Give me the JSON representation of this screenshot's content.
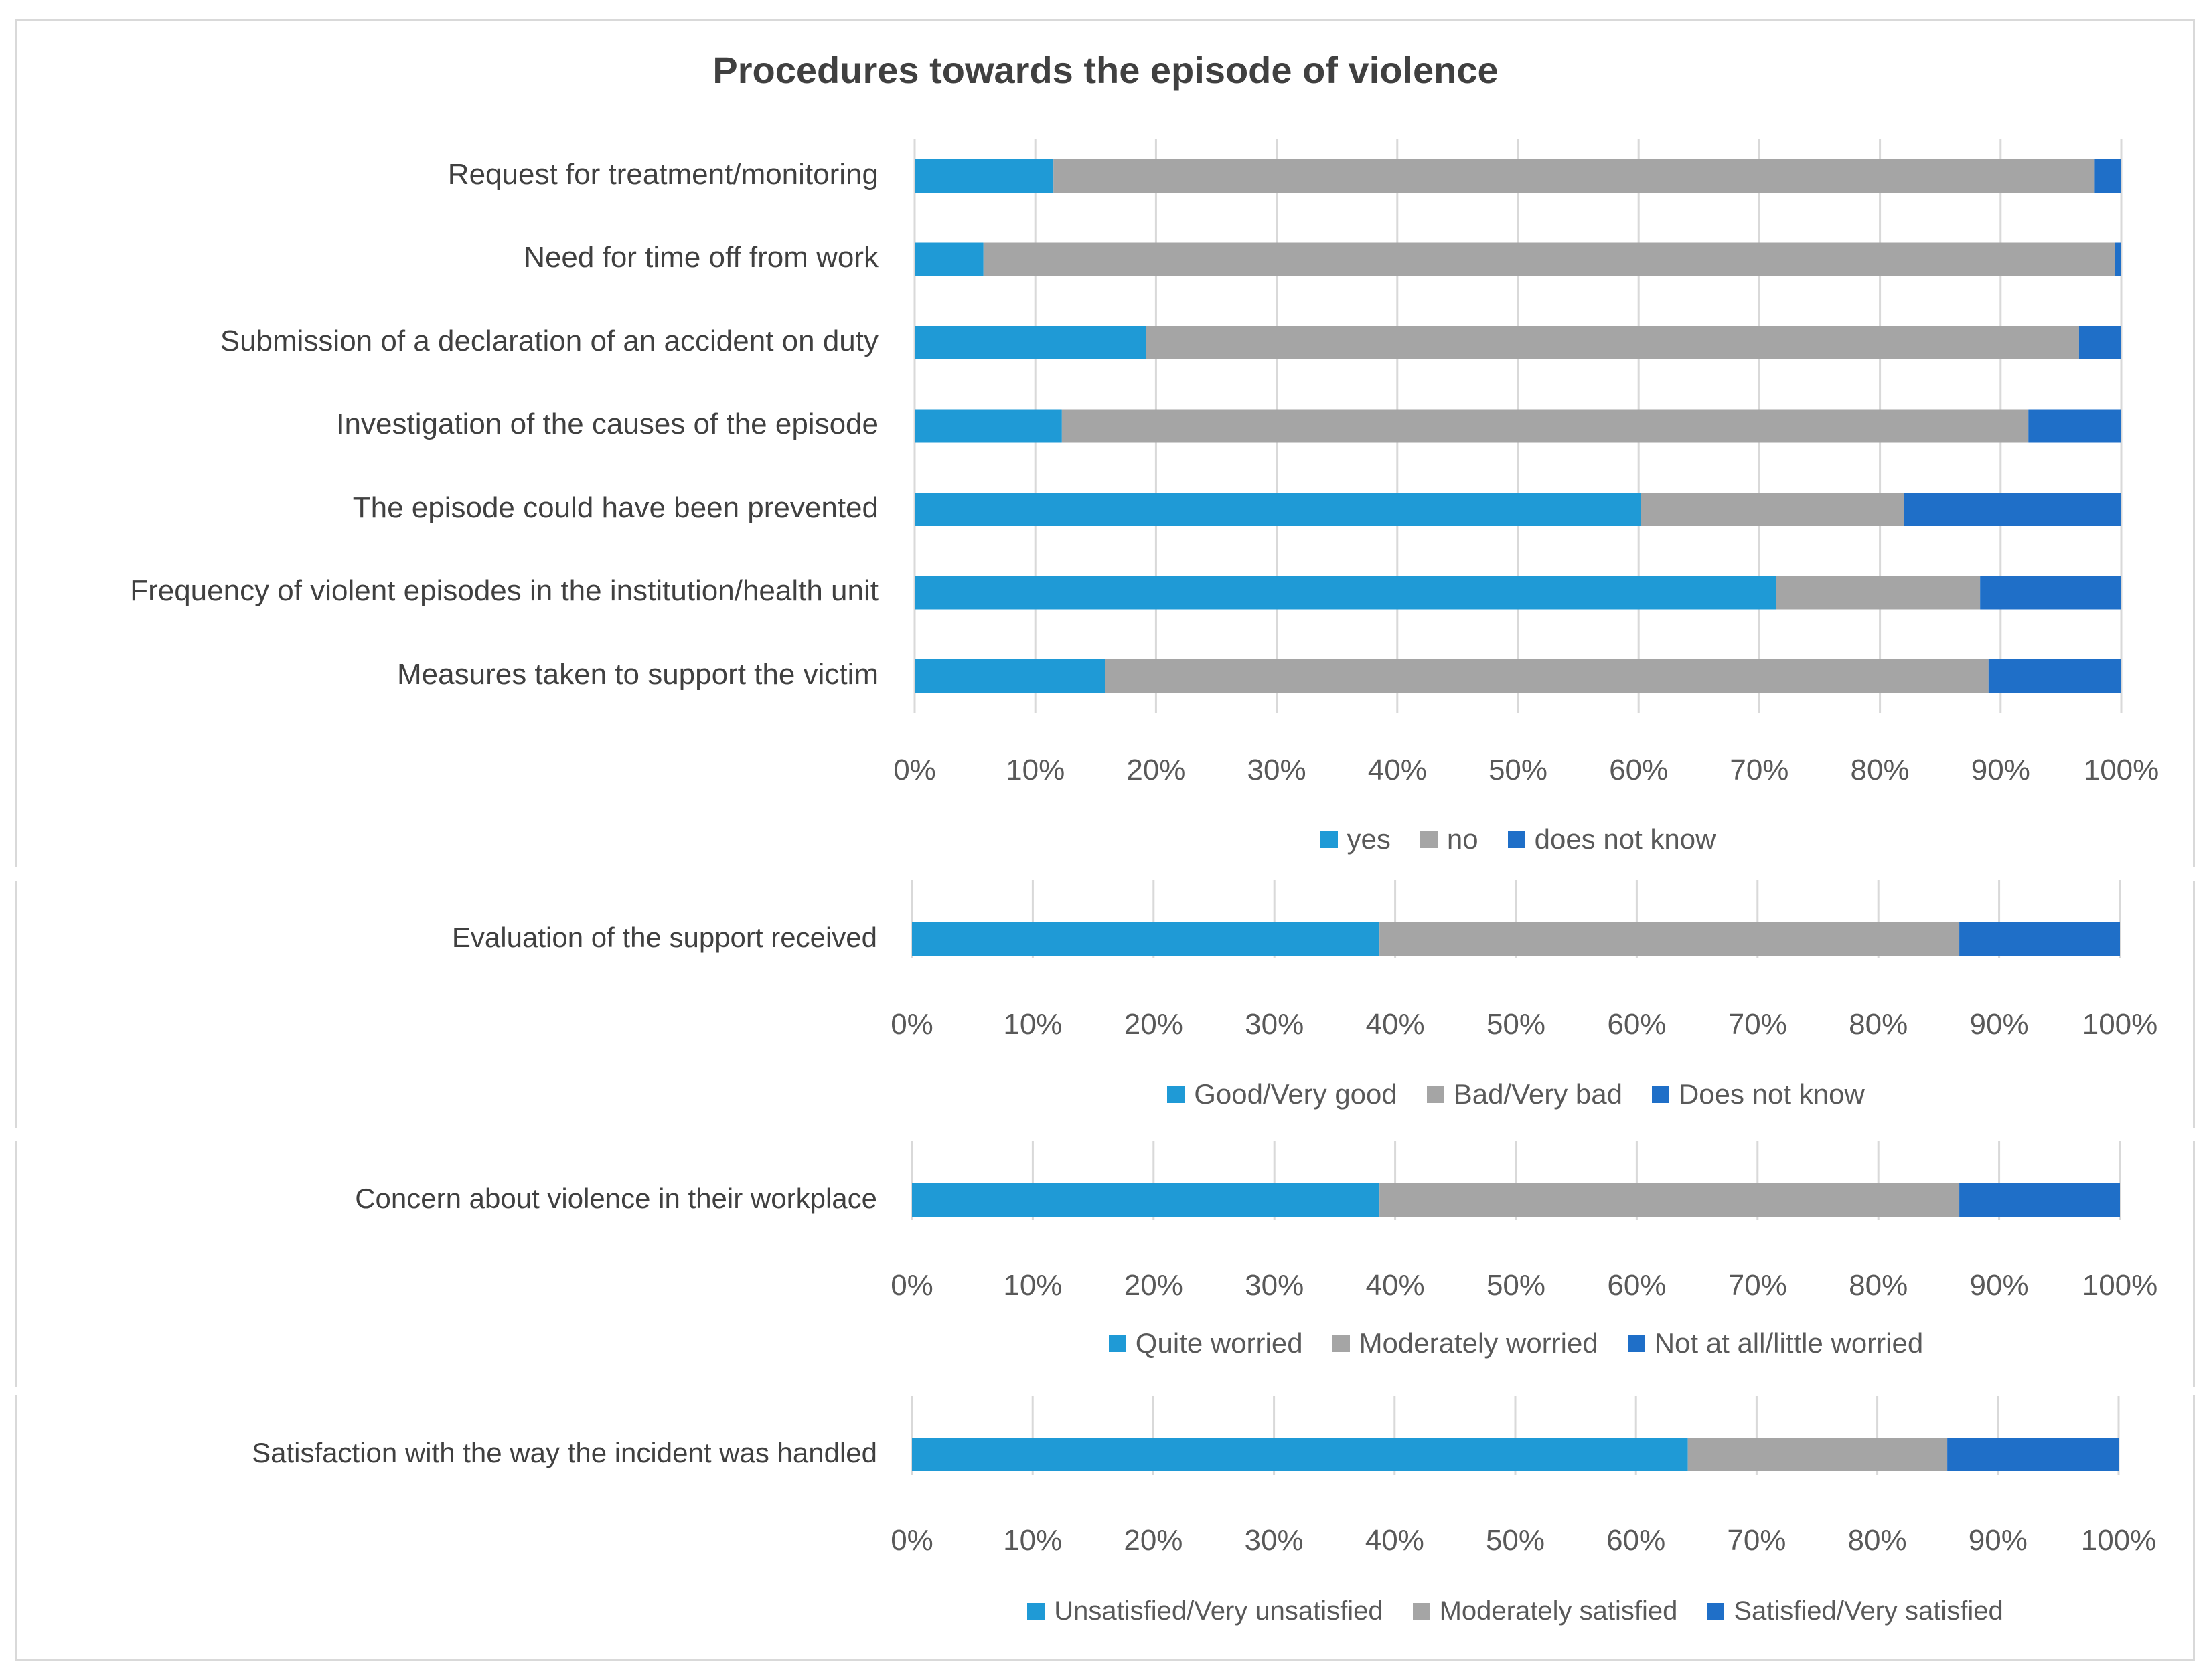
{
  "colors": {
    "yes": "#1f9ad6",
    "no": "#a5a5a5",
    "dnk": "#1f6fc8",
    "grid": "#d9d9d9"
  },
  "chart_data": [
    {
      "id": "procedures",
      "type": "bar",
      "orientation": "horizontal",
      "stacked": true,
      "title": "Procedures towards the episode of violence",
      "xlabel": "",
      "ylabel": "",
      "xlim": [
        0,
        100
      ],
      "ticks": [
        "0%",
        "10%",
        "20%",
        "30%",
        "40%",
        "50%",
        "60%",
        "70%",
        "80%",
        "90%",
        "100%"
      ],
      "categories": [
        "Request for treatment/monitoring",
        "Need for time off from work",
        "Submission of a declaration of an accident on duty",
        "Investigation of the causes of the episode",
        "The episode could have been prevented",
        "Frequency of violent episodes in the institution/health unit",
        "Measures taken to support the victim"
      ],
      "series": [
        {
          "name": "yes",
          "color": "#1f9ad6",
          "values": [
            11.5,
            5.7,
            19.2,
            12.2,
            60.2,
            71.4,
            15.8
          ]
        },
        {
          "name": "no",
          "color": "#a5a5a5",
          "values": [
            86.3,
            93.8,
            77.3,
            80.1,
            21.8,
            16.9,
            73.2
          ]
        },
        {
          "name": "does not know",
          "color": "#1f6fc8",
          "values": [
            2.2,
            0.5,
            3.5,
            7.7,
            18.0,
            11.7,
            11.0
          ]
        }
      ],
      "legend": "bottom"
    },
    {
      "id": "support",
      "type": "bar",
      "orientation": "horizontal",
      "stacked": true,
      "xlim": [
        0,
        100
      ],
      "ticks": [
        "0%",
        "10%",
        "20%",
        "30%",
        "40%",
        "50%",
        "60%",
        "70%",
        "80%",
        "90%",
        "100%"
      ],
      "categories": [
        "Evaluation of the support received"
      ],
      "series": [
        {
          "name": "Good/Very good",
          "color": "#1f9ad6",
          "values": [
            38.7
          ]
        },
        {
          "name": "Bad/Very bad",
          "color": "#a5a5a5",
          "values": [
            48.0
          ]
        },
        {
          "name": "Does not know",
          "color": "#1f6fc8",
          "values": [
            13.3
          ]
        }
      ],
      "legend": "bottom"
    },
    {
      "id": "concern",
      "type": "bar",
      "orientation": "horizontal",
      "stacked": true,
      "xlim": [
        0,
        100
      ],
      "ticks": [
        "0%",
        "10%",
        "20%",
        "30%",
        "40%",
        "50%",
        "60%",
        "70%",
        "80%",
        "90%",
        "100%"
      ],
      "categories": [
        "Concern about violence in their workplace"
      ],
      "series": [
        {
          "name": "Quite worried",
          "color": "#1f9ad6",
          "values": [
            38.7
          ]
        },
        {
          "name": "Moderately worried",
          "color": "#a5a5a5",
          "values": [
            48.0
          ]
        },
        {
          "name": "Not at all/little worried",
          "color": "#1f6fc8",
          "values": [
            13.3
          ]
        }
      ],
      "legend": "bottom"
    },
    {
      "id": "satisfaction",
      "type": "bar",
      "orientation": "horizontal",
      "stacked": true,
      "xlim": [
        0,
        100
      ],
      "ticks": [
        "0%",
        "10%",
        "20%",
        "30%",
        "40%",
        "50%",
        "60%",
        "70%",
        "80%",
        "90%",
        "100%"
      ],
      "categories": [
        "Satisfaction with the way the incident was handled"
      ],
      "series": [
        {
          "name": "Unsatisfied/Very unsatisfied",
          "color": "#1f9ad6",
          "values": [
            64.3
          ]
        },
        {
          "name": "Moderately satisfied",
          "color": "#a5a5a5",
          "values": [
            21.5
          ]
        },
        {
          "name": "Satisfied/Very satisfied",
          "color": "#1f6fc8",
          "values": [
            14.2
          ]
        }
      ],
      "legend": "bottom"
    }
  ]
}
